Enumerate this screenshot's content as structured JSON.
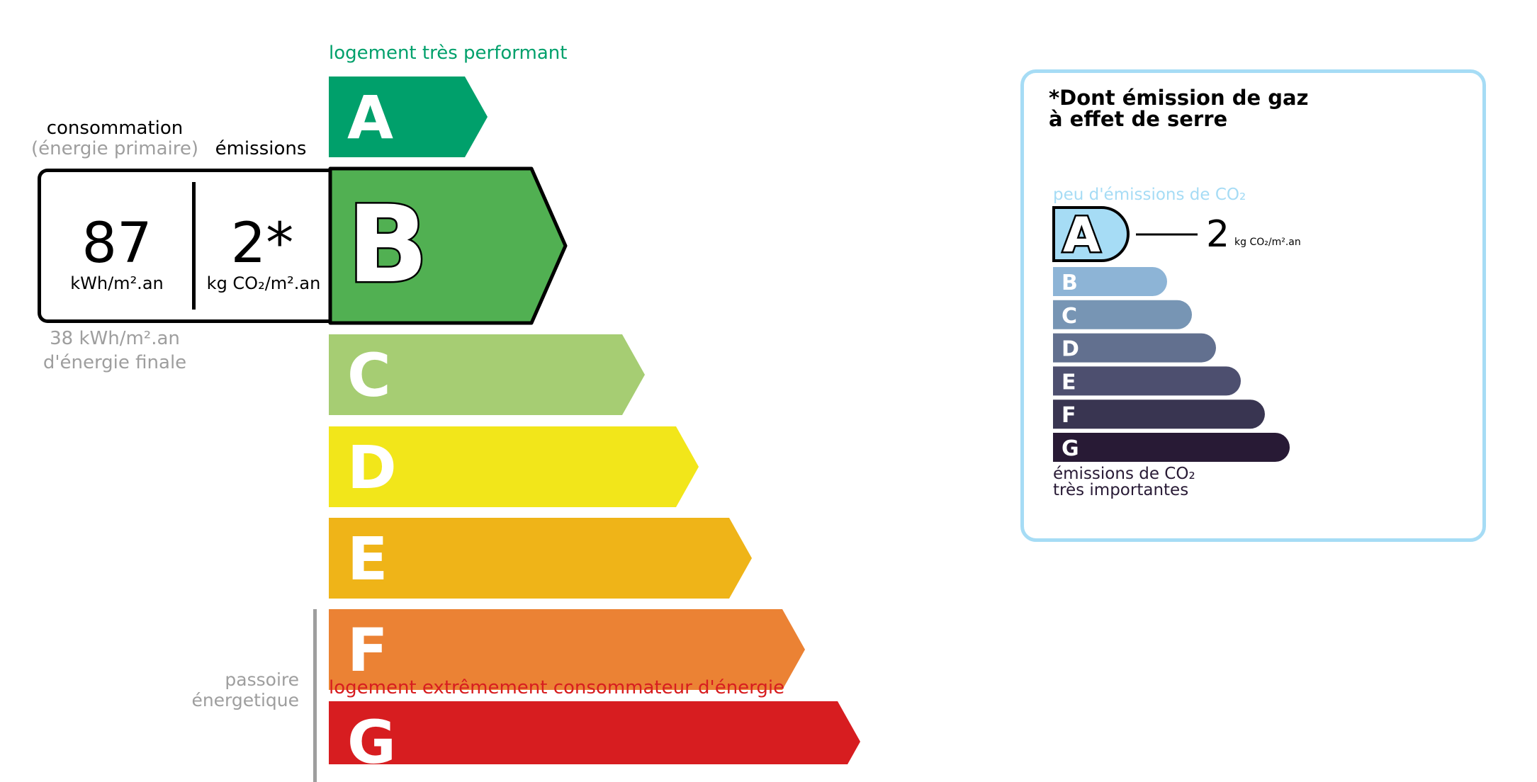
{
  "energy": {
    "top_label": "logement très performant",
    "bottom_label": "logement extrêmement consommateur d'énergie",
    "top_color": "#00a06b",
    "bottom_color": "#d71d20",
    "classes": [
      {
        "letter": "A",
        "color": "#00a06b"
      },
      {
        "letter": "B",
        "color": "#51b052"
      },
      {
        "letter": "C",
        "color": "#a6cd73"
      },
      {
        "letter": "D",
        "color": "#f2e61a"
      },
      {
        "letter": "E",
        "color": "#efb418"
      },
      {
        "letter": "F",
        "color": "#eb8234"
      },
      {
        "letter": "G",
        "color": "#d71d20"
      }
    ],
    "current_class": "B",
    "passoire_line1": "passoire",
    "passoire_line2": "énergetique"
  },
  "box": {
    "consumption_header": "consommation",
    "consumption_subheader": "(énergie primaire)",
    "emissions_header": "émissions",
    "consumption_value": "87",
    "consumption_unit": "kWh/m².an",
    "emissions_value": "2*",
    "emissions_unit": "kg CO₂/m².an",
    "final_energy_line1": "38 kWh/m².an",
    "final_energy_line2": "d'énergie finale"
  },
  "ges": {
    "title_line1": "*Dont émission de gaz",
    "title_line2": "à effet de serre",
    "top_label": "peu d'émissions de CO₂",
    "bottom_label_line1": "émissions de CO₂",
    "bottom_label_line2": "très importantes",
    "border_color": "#a6dcf5",
    "current_class": "A",
    "current_value": "2",
    "current_unit": "kg CO₂/m².an",
    "classes": [
      {
        "letter": "A",
        "color": "#a6dcf5"
      },
      {
        "letter": "B",
        "color": "#8db4d6"
      },
      {
        "letter": "C",
        "color": "#7795b4"
      },
      {
        "letter": "D",
        "color": "#62708f"
      },
      {
        "letter": "E",
        "color": "#4d4f6f"
      },
      {
        "letter": "F",
        "color": "#393551"
      },
      {
        "letter": "G",
        "color": "#281a35"
      }
    ]
  }
}
